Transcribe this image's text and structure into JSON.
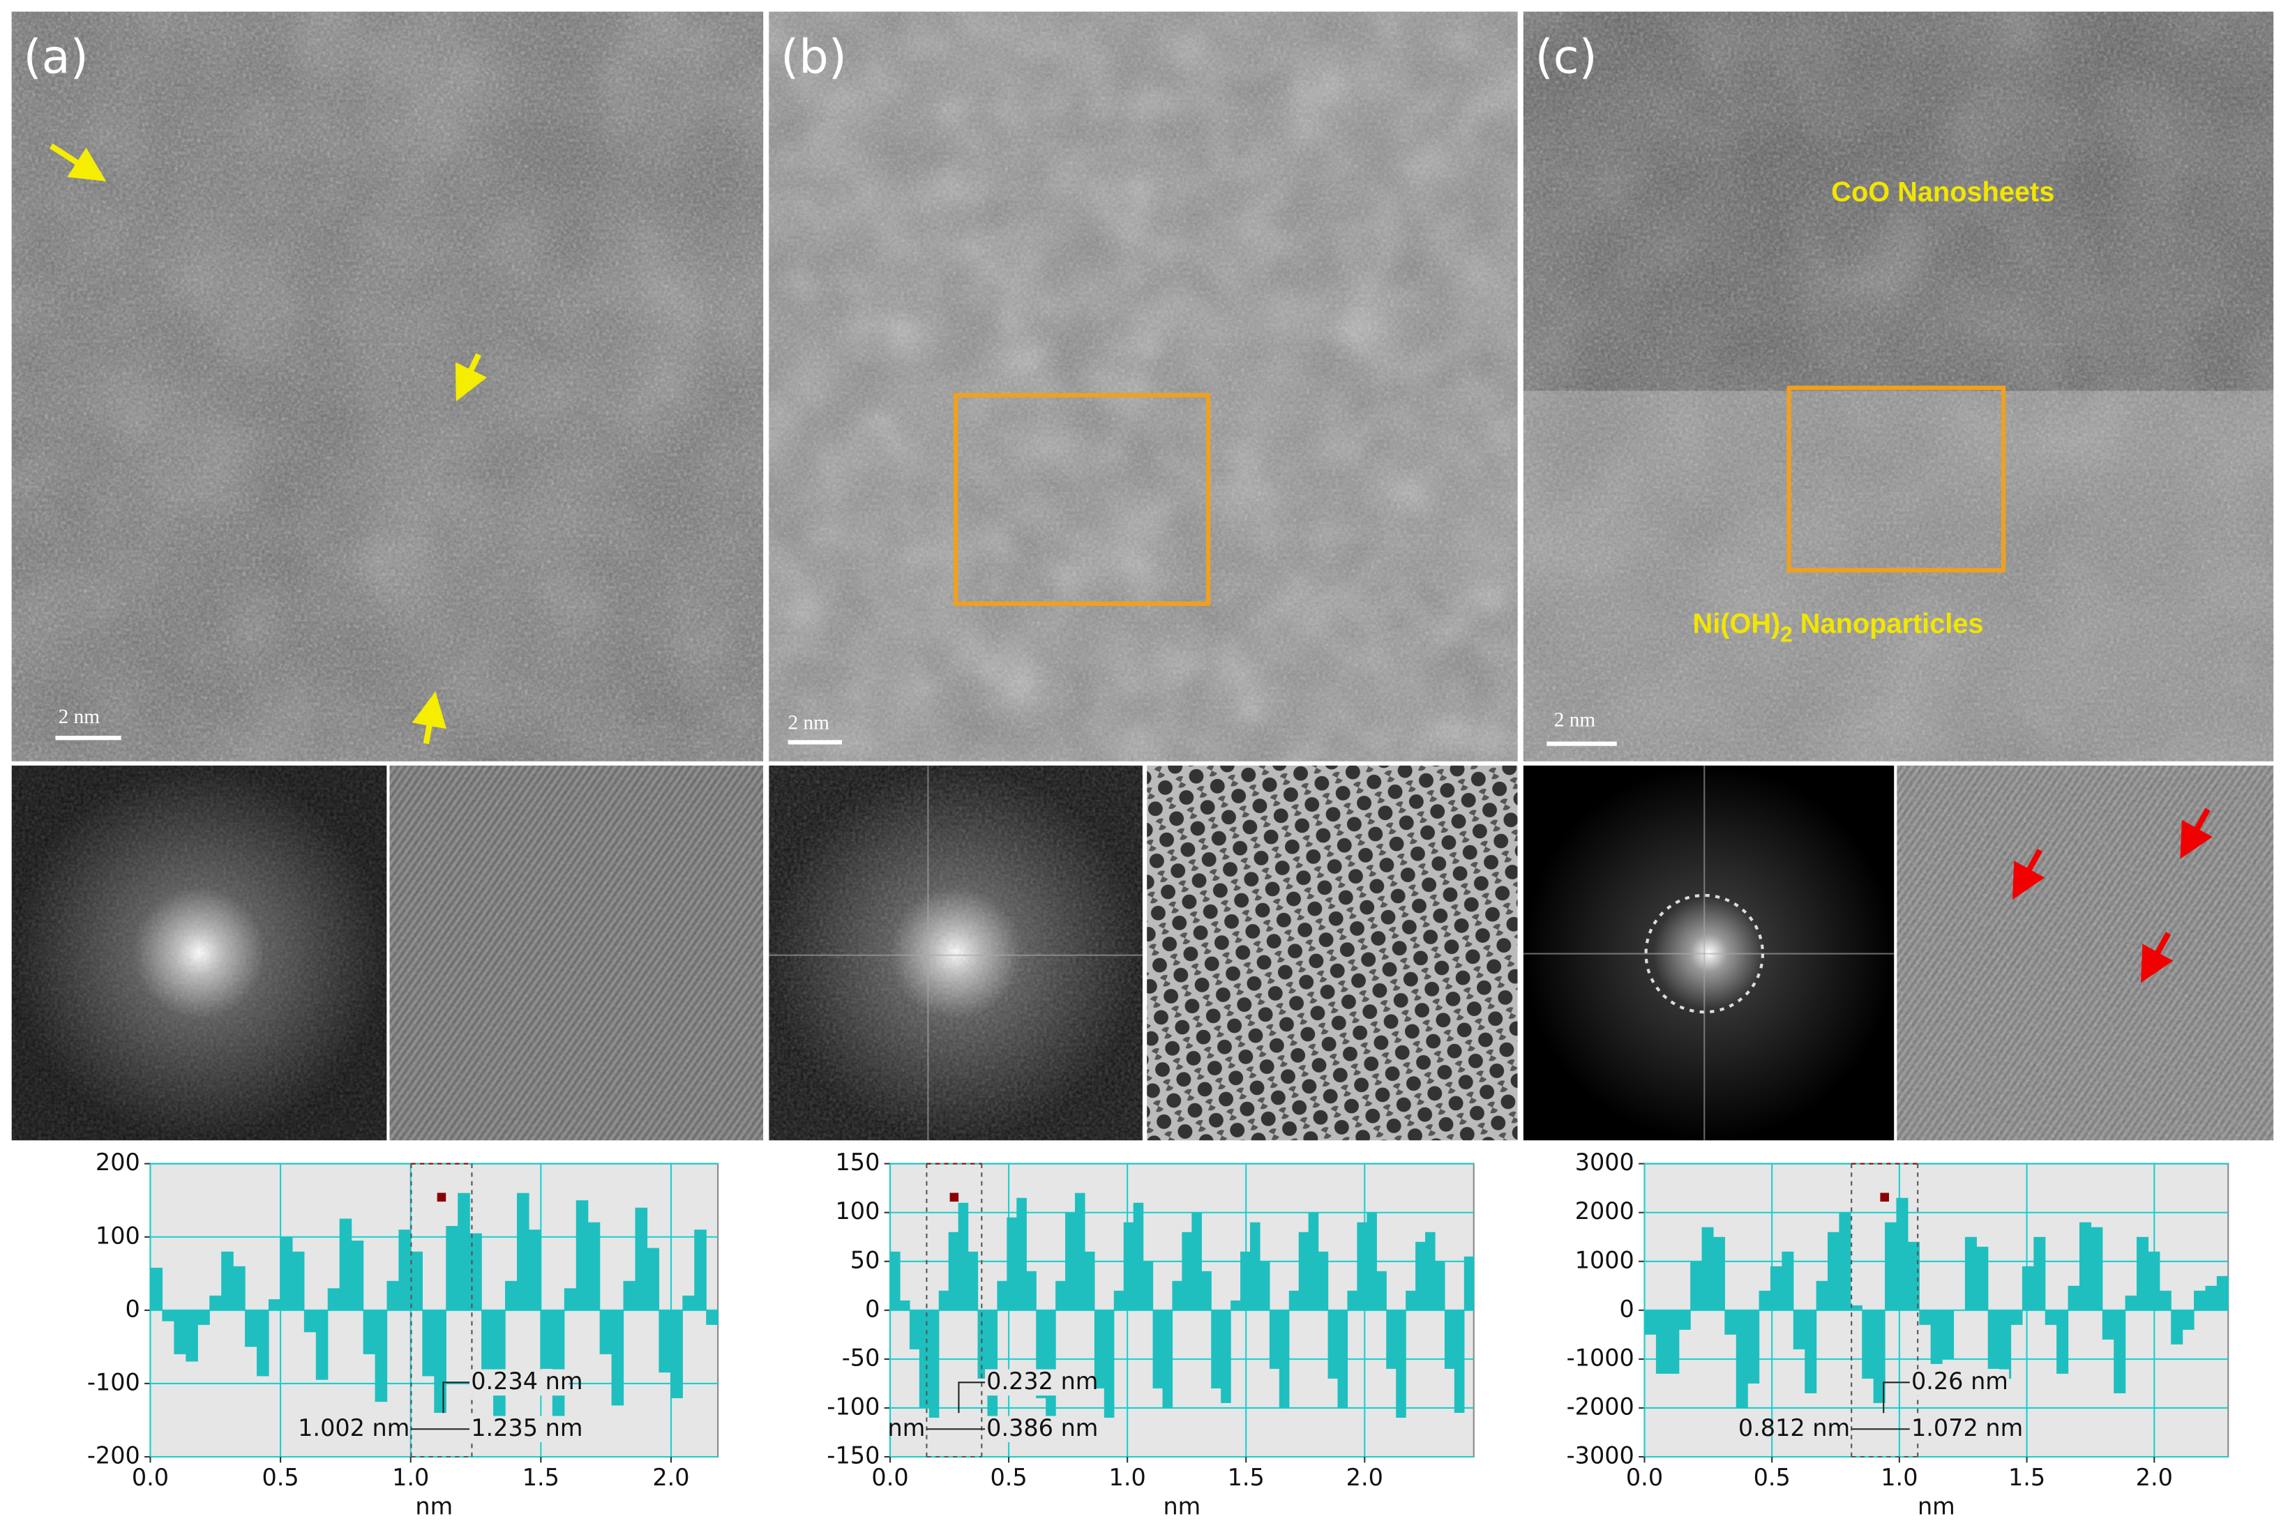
{
  "figure": {
    "panels": [
      {
        "label": "(a)",
        "scale_bar": "2 nm"
      },
      {
        "label": "(b)",
        "scale_bar": "2 nm"
      },
      {
        "label": "(c)",
        "scale_bar": "2 nm",
        "annotation": "CoO Nanosheets",
        "annotation2": {
          "text": "Ni(OH)",
          "subscript": "2",
          "suffix": " Nanoparticles"
        }
      }
    ]
  },
  "chart_data": [
    {
      "type": "bar",
      "xlabel": "nm",
      "color": "#1fbfbf",
      "grid": true,
      "xlim": [
        0,
        2.18
      ],
      "xticks": [
        {
          "value": 0,
          "label": "0.0"
        },
        0.5,
        {
          "value": 1,
          "label": "1.0"
        },
        1.5,
        {
          "value": 2,
          "label": "2.0"
        }
      ],
      "ylim": [
        -200,
        200
      ],
      "yticks": [
        -200,
        -100,
        0,
        100,
        200
      ],
      "values": [
        58,
        -15,
        -60,
        -70,
        -20,
        20,
        80,
        60,
        -50,
        -90,
        15,
        100,
        80,
        -30,
        -95,
        30,
        125,
        95,
        -60,
        -125,
        40,
        110,
        80,
        -90,
        -140,
        115,
        160,
        105,
        -100,
        -145,
        40,
        160,
        110,
        -80,
        -150,
        30,
        150,
        120,
        -60,
        -130,
        40,
        140,
        85,
        -85,
        -120,
        20,
        110,
        -20
      ],
      "measure": {
        "box": [
          1.002,
          1.235
        ],
        "labels": [
          "0.234 nm",
          "1.002 nm",
          "1.235 nm"
        ]
      }
    },
    {
      "type": "bar",
      "xlabel": "nm",
      "color": "#1fbfbf",
      "grid": true,
      "xlim": [
        0,
        2.46
      ],
      "xticks": [
        {
          "value": 0,
          "label": "0.0"
        },
        0.5,
        {
          "value": 1,
          "label": "1.0"
        },
        1.5,
        {
          "value": 2,
          "label": "2.0"
        }
      ],
      "ylim": [
        -150,
        150
      ],
      "yticks": [
        -150,
        -100,
        -50,
        0,
        50,
        100,
        150
      ],
      "values": [
        60,
        10,
        -40,
        -100,
        -110,
        20,
        80,
        110,
        60,
        -70,
        -120,
        30,
        95,
        115,
        40,
        -90,
        -115,
        30,
        100,
        120,
        60,
        -80,
        -110,
        20,
        90,
        110,
        50,
        -80,
        -100,
        30,
        80,
        100,
        40,
        -80,
        -95,
        10,
        60,
        90,
        50,
        -60,
        -100,
        20,
        80,
        100,
        60,
        -70,
        -100,
        20,
        90,
        100,
        40,
        -60,
        -110,
        20,
        70,
        80,
        50,
        -60,
        -105,
        55
      ],
      "measure": {
        "box": [
          0.154,
          0.386
        ],
        "labels": [
          "0.232 nm",
          "nm",
          "0.386 nm"
        ]
      }
    },
    {
      "type": "bar",
      "xlabel": "nm",
      "color": "#1fbfbf",
      "grid": true,
      "xlim": [
        0,
        2.29
      ],
      "xticks": [
        {
          "value": 0,
          "label": "0.0"
        },
        0.5,
        {
          "value": 1,
          "label": "1.0"
        },
        1.5,
        {
          "value": 2,
          "label": "2.0"
        }
      ],
      "ylim": [
        -3000,
        3000
      ],
      "yticks": [
        -3000,
        -2000,
        -1000,
        0,
        1000,
        2000,
        3000
      ],
      "values": [
        -500,
        -1300,
        -1300,
        -400,
        1000,
        1700,
        1500,
        -500,
        -2000,
        -1500,
        400,
        900,
        1200,
        -800,
        -1700,
        600,
        1600,
        2000,
        100,
        -1400,
        -1900,
        1800,
        2300,
        1400,
        -300,
        -1100,
        -1000,
        0,
        1500,
        1300,
        -1200,
        -1400,
        -300,
        900,
        1500,
        -300,
        -1300,
        500,
        1800,
        1700,
        -600,
        -1700,
        300,
        1500,
        1200,
        400,
        -700,
        -400,
        400,
        500,
        700
      ],
      "measure": {
        "box": [
          0.812,
          1.072
        ],
        "labels": [
          "0.26 nm",
          "0.812 nm",
          "1.072 nm"
        ]
      }
    }
  ]
}
